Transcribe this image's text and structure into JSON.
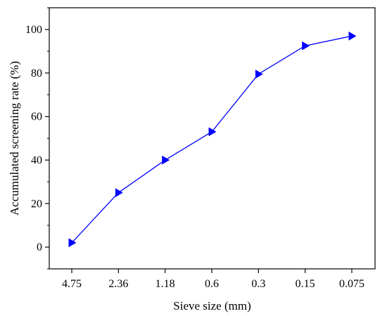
{
  "chart_data": {
    "type": "line",
    "categories": [
      "4.75",
      "2.36",
      "1.18",
      "0.6",
      "0.3",
      "0.15",
      "0.075"
    ],
    "series": [
      {
        "values": [
          2,
          25,
          40,
          53,
          79.5,
          92.5,
          97
        ],
        "color": "#0000ff",
        "marker": "right-triangle"
      }
    ],
    "xlabel": "Sieve size (mm)",
    "ylabel": "Accumulated screening rate (%)",
    "ylim": [
      -10,
      110
    ],
    "yticks": [
      0,
      20,
      40,
      60,
      80,
      100
    ],
    "grid": false,
    "legend": "none"
  }
}
